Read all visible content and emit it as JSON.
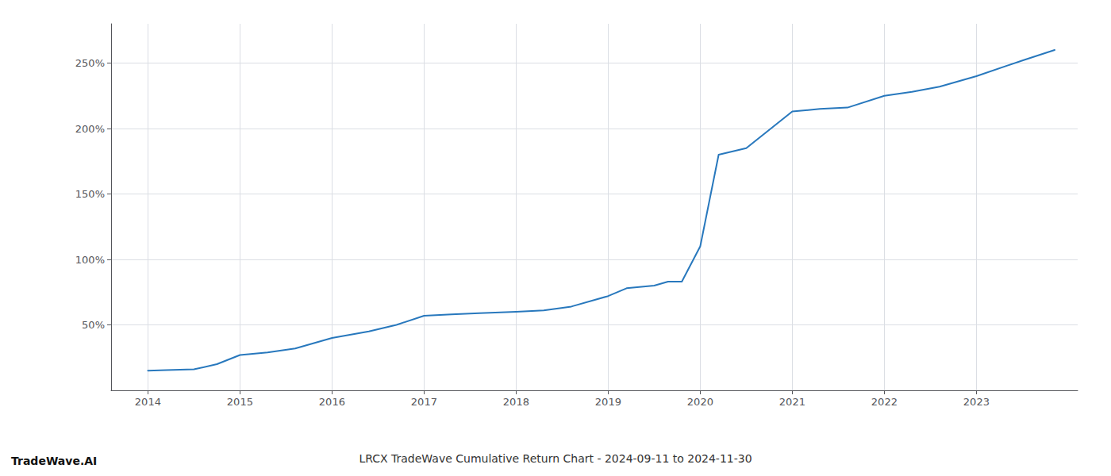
{
  "chart_data": {
    "type": "line",
    "title": "LRCX TradeWave Cumulative Return Chart - 2024-09-11 to 2024-11-30",
    "annotations": [
      "TradeWave.AI"
    ],
    "color": "#2878bd",
    "grid": true,
    "x": [
      2014.0,
      2014.2,
      2014.5,
      2014.75,
      2015.0,
      2015.3,
      2015.6,
      2016.0,
      2016.4,
      2016.7,
      2017.0,
      2017.3,
      2017.6,
      2018.0,
      2018.3,
      2018.6,
      2019.0,
      2019.2,
      2019.5,
      2019.65,
      2019.8,
      2020.0,
      2020.2,
      2020.5,
      2021.0,
      2021.3,
      2021.6,
      2022.0,
      2022.3,
      2022.6,
      2023.0,
      2023.5,
      2023.85
    ],
    "values": [
      15,
      15.5,
      16,
      20,
      27,
      29,
      32,
      40,
      45,
      50,
      57,
      58,
      59,
      60,
      61,
      64,
      72,
      78,
      80,
      83,
      83,
      110,
      180,
      185,
      213,
      215,
      216,
      225,
      228,
      232,
      240,
      252,
      260
    ],
    "xlim": [
      2013.6,
      2024.1
    ],
    "xticks": [
      2014,
      2015,
      2016,
      2017,
      2018,
      2019,
      2020,
      2021,
      2022,
      2023
    ],
    "ylim": [
      0,
      280
    ],
    "yticks": [
      {
        "value": 50,
        "label": "50%"
      },
      {
        "value": 100,
        "label": "100%"
      },
      {
        "value": 150,
        "label": "150%"
      },
      {
        "value": 200,
        "label": "200%"
      },
      {
        "value": 250,
        "label": "250%"
      }
    ]
  }
}
